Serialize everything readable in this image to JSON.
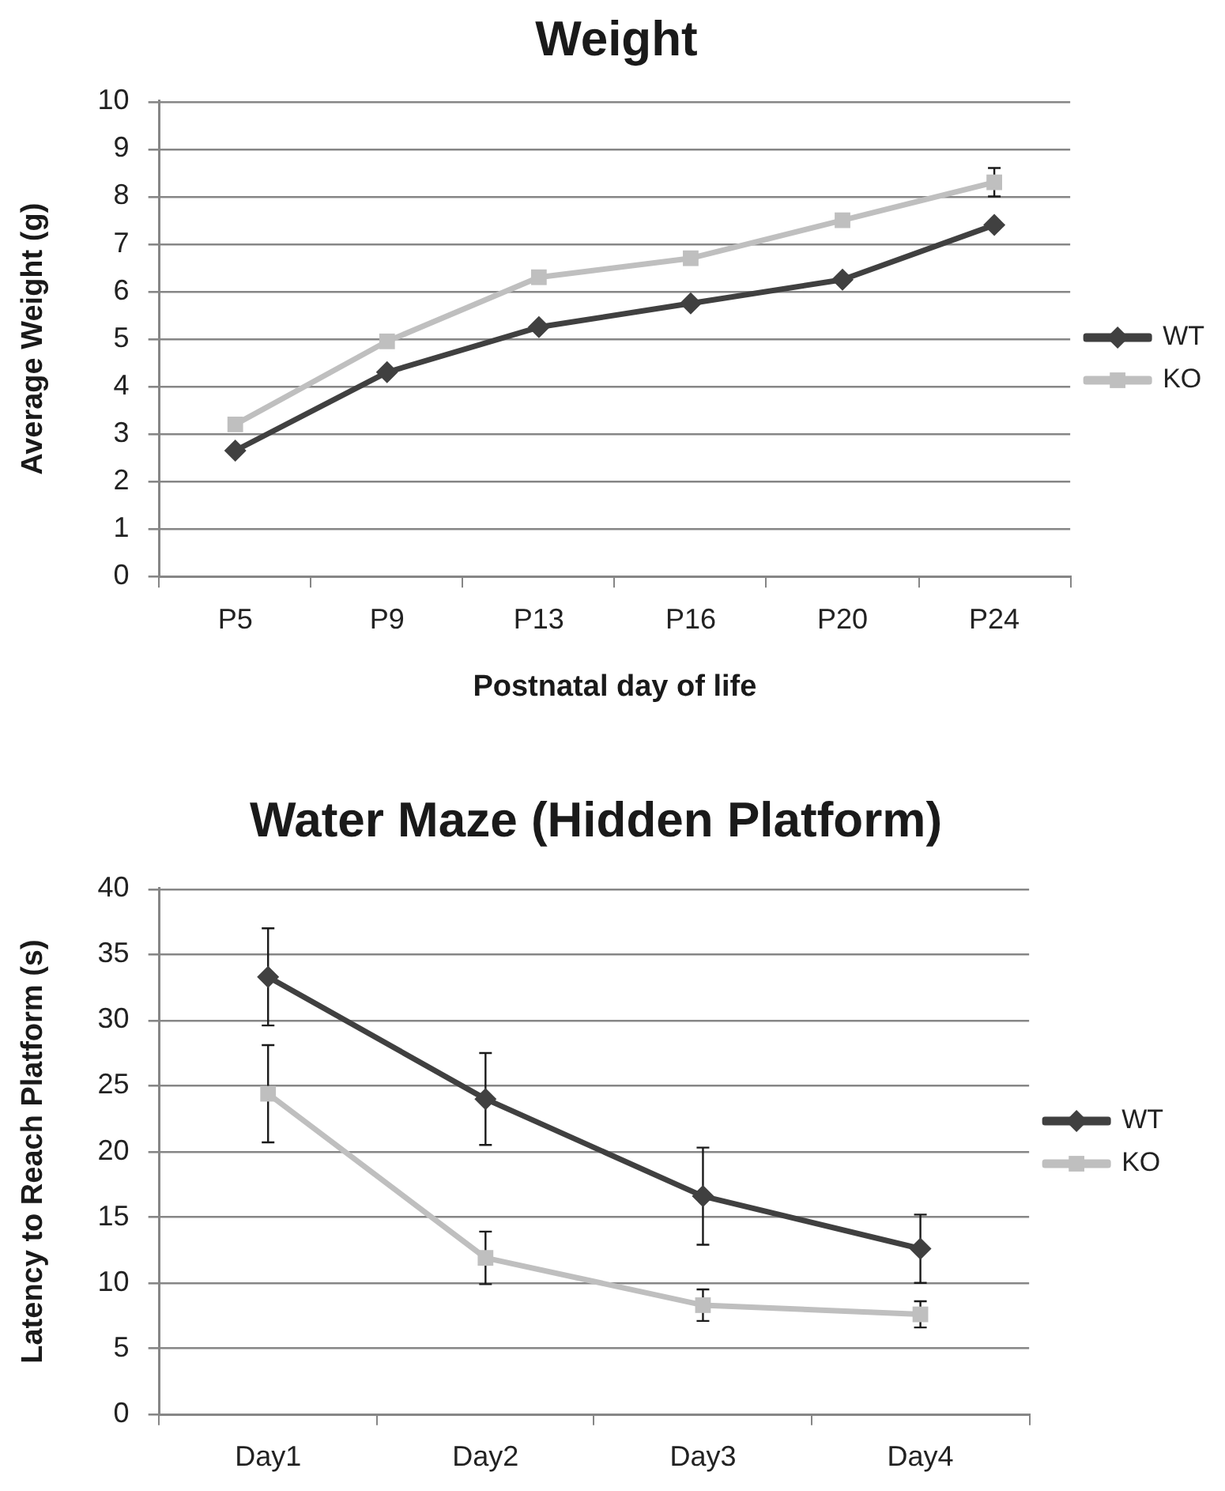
{
  "chart_data": [
    {
      "type": "line",
      "title": "Weight",
      "xlabel": "Postnatal day of life",
      "ylabel": "Average Weight (g)",
      "categories": [
        "P5",
        "P9",
        "P13",
        "P16",
        "P20",
        "P24"
      ],
      "series": [
        {
          "name": "WT",
          "color": "#404040",
          "marker": "diamond",
          "values": [
            2.65,
            4.3,
            5.25,
            5.75,
            6.25,
            7.4
          ]
        },
        {
          "name": "KO",
          "color": "#bfbfbf",
          "marker": "square",
          "values": [
            3.2,
            4.95,
            6.3,
            6.7,
            7.5,
            8.3
          ],
          "errors": [
            null,
            null,
            null,
            null,
            null,
            0.3
          ]
        }
      ],
      "ylim": [
        0,
        10
      ],
      "yticks": [
        0,
        1,
        2,
        3,
        4,
        5,
        6,
        7,
        8,
        9,
        10
      ],
      "grid": "y",
      "legend": "right"
    },
    {
      "type": "line",
      "title": "Water Maze (Hidden Platform)",
      "ylabel": "Latency to Reach Platform (s)",
      "categories": [
        "Day1",
        "Day2",
        "Day3",
        "Day4"
      ],
      "series": [
        {
          "name": "WT",
          "color": "#404040",
          "marker": "diamond",
          "values": [
            33.3,
            24,
            16.6,
            12.6
          ],
          "errors": [
            3.7,
            3.5,
            3.7,
            2.6
          ]
        },
        {
          "name": "KO",
          "color": "#bfbfbf",
          "marker": "square",
          "values": [
            24.4,
            11.9,
            8.3,
            7.6
          ],
          "errors": [
            3.7,
            2,
            1.2,
            1
          ]
        }
      ],
      "ylim": [
        0,
        40
      ],
      "yticks": [
        0,
        5,
        10,
        15,
        20,
        25,
        30,
        35,
        40
      ],
      "grid": "y",
      "legend": "right"
    }
  ]
}
